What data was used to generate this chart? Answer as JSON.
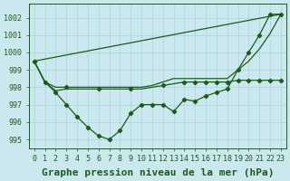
{
  "ylim": [
    994.5,
    1002.8
  ],
  "yticks": [
    995,
    996,
    997,
    998,
    999,
    1000,
    1001,
    1002
  ],
  "xlim": [
    -0.5,
    23.5
  ],
  "xticks": [
    0,
    1,
    2,
    3,
    4,
    5,
    6,
    7,
    8,
    9,
    10,
    11,
    12,
    13,
    14,
    15,
    16,
    17,
    18,
    19,
    20,
    21,
    22,
    23
  ],
  "xtick_labels": [
    "0",
    "1",
    "2",
    "3",
    "4",
    "5",
    "6",
    "7",
    "8",
    "9",
    "10",
    "11",
    "12",
    "13",
    "14",
    "15",
    "16",
    "17",
    "18",
    "19",
    "20",
    "21",
    "22",
    "23"
  ],
  "bg_color": "#cce8ef",
  "grid_color": "#a8d4dc",
  "line_color": "#1a5c1a",
  "xlabel": "Graphe pression niveau de la mer (hPa)",
  "tick_fontsize": 6.0,
  "xlabel_fontsize": 8.0,
  "linewidth": 0.9,
  "line1_x": [
    0,
    1,
    2,
    3,
    4,
    5,
    6,
    7,
    8,
    9,
    10,
    11,
    12,
    13,
    14,
    15,
    16,
    17,
    18,
    19,
    20,
    21,
    22,
    23
  ],
  "line1_y": [
    999.5,
    998.3,
    997.8,
    997.9,
    997.9,
    997.9,
    997.9,
    997.9,
    997.9,
    997.9,
    997.9,
    998.0,
    998.1,
    998.2,
    998.3,
    998.3,
    998.3,
    998.3,
    998.3,
    998.4,
    998.4,
    998.4,
    998.4,
    998.4
  ],
  "line2_x": [
    0,
    1,
    2,
    3,
    4,
    5,
    6,
    7,
    8,
    9,
    10,
    11,
    12,
    13,
    14,
    15,
    16,
    17,
    18,
    19,
    20,
    21,
    22,
    23
  ],
  "line2_y": [
    999.5,
    998.3,
    998.0,
    998.0,
    998.0,
    998.0,
    998.0,
    998.0,
    998.0,
    998.0,
    998.0,
    998.1,
    998.3,
    998.5,
    998.5,
    998.5,
    998.5,
    998.5,
    998.5,
    999.0,
    999.5,
    1000.2,
    1001.1,
    1002.2
  ],
  "line3_x": [
    0,
    23
  ],
  "line3_y": [
    999.5,
    1002.2
  ],
  "line4_x": [
    0,
    1,
    2,
    3,
    4,
    5,
    6,
    7,
    8,
    9,
    10,
    11,
    12,
    13,
    14,
    15,
    16,
    17,
    18,
    19,
    20,
    21,
    22,
    23
  ],
  "line4_y": [
    999.5,
    998.3,
    997.7,
    997.0,
    996.3,
    995.7,
    995.2,
    995.0,
    995.5,
    996.5,
    997.0,
    997.0,
    997.0,
    996.6,
    997.3,
    997.2,
    997.5,
    997.7,
    997.9,
    999.0,
    1000.0,
    1001.0,
    1002.2,
    1002.2
  ],
  "line4_marker_x": [
    0,
    1,
    2,
    3,
    4,
    5,
    6,
    7,
    8,
    9,
    10,
    11,
    12,
    13,
    14,
    15,
    16,
    17,
    18,
    19,
    20,
    21,
    22,
    23
  ],
  "line3_marker_x": [
    0,
    3,
    6,
    9,
    12,
    14,
    15,
    16,
    17,
    18,
    19,
    20,
    21,
    22,
    23
  ],
  "line3_marker_y": [
    999.5,
    998.0,
    997.9,
    997.9,
    998.1,
    998.3,
    998.3,
    998.3,
    998.3,
    998.3,
    998.4,
    998.4,
    998.4,
    998.4,
    998.4
  ]
}
